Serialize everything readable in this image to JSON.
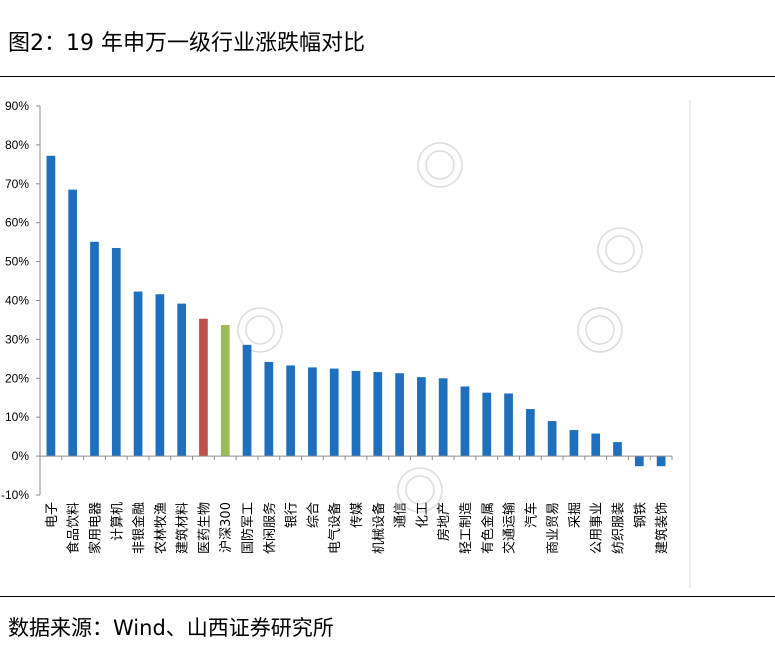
{
  "header": {
    "title": "图2：19 年申万一级行业涨跌幅对比"
  },
  "footer": {
    "source": "数据来源：Wind、山西证券研究所"
  },
  "chart_data": {
    "type": "bar",
    "title": "",
    "xlabel": "",
    "ylabel": "",
    "ylim": [
      -0.1,
      0.9
    ],
    "yticks": [
      "-10%",
      "0%",
      "10%",
      "20%",
      "30%",
      "40%",
      "50%",
      "60%",
      "70%",
      "80%",
      "90%"
    ],
    "grid": false,
    "legend": "none",
    "categories": [
      "电子",
      "食品饮料",
      "家用电器",
      "计算机",
      "非银金融",
      "农林牧渔",
      "建筑材料",
      "医药生物",
      "沪深300",
      "国防军工",
      "休闲服务",
      "银行",
      "综合",
      "电气设备",
      "传媒",
      "机械设备",
      "通信",
      "化工",
      "房地产",
      "轻工制造",
      "有色金属",
      "交通运输",
      "汽车",
      "商业贸易",
      "采掘",
      "公用事业",
      "纺织服装",
      "钢铁",
      "建筑装饰"
    ],
    "values": [
      0.772,
      0.685,
      0.551,
      0.535,
      0.423,
      0.416,
      0.392,
      0.353,
      0.337,
      0.286,
      0.242,
      0.233,
      0.228,
      0.225,
      0.219,
      0.216,
      0.213,
      0.203,
      0.2,
      0.179,
      0.163,
      0.161,
      0.121,
      0.09,
      0.067,
      0.058,
      0.036,
      -0.026,
      -0.026
    ],
    "colors": {
      "default": "#1f6fbf",
      "医药生物": "#c0504d",
      "沪深300": "#9bbb59"
    }
  }
}
